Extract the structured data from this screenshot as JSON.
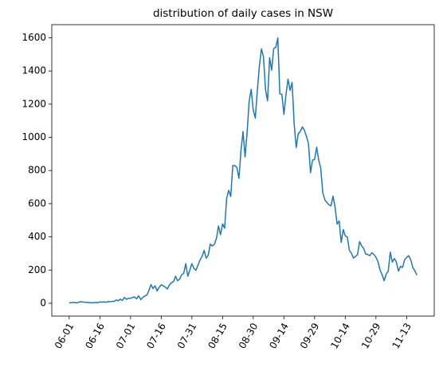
{
  "chart_data": {
    "type": "line",
    "title": "distribution of daily cases in NSW",
    "categories": [
      "06-01",
      null,
      null,
      null,
      null,
      null,
      null,
      null,
      null,
      null,
      null,
      null,
      null,
      null,
      null,
      "06-16",
      null,
      null,
      null,
      null,
      null,
      null,
      null,
      null,
      null,
      null,
      null,
      null,
      null,
      null,
      "07-01",
      null,
      null,
      null,
      null,
      null,
      null,
      null,
      null,
      null,
      null,
      null,
      null,
      null,
      null,
      "07-16",
      null,
      null,
      null,
      null,
      null,
      null,
      null,
      null,
      null,
      null,
      null,
      null,
      null,
      null,
      "07-31",
      null,
      null,
      null,
      null,
      null,
      null,
      null,
      null,
      null,
      null,
      null,
      null,
      null,
      null,
      "08-15",
      null,
      null,
      null,
      null,
      null,
      null,
      null,
      null,
      null,
      null,
      null,
      null,
      null,
      null,
      "08-30",
      null,
      null,
      null,
      null,
      null,
      null,
      null,
      null,
      null,
      null,
      null,
      null,
      null,
      null,
      "09-14",
      null,
      null,
      null,
      null,
      null,
      null,
      null,
      null,
      null,
      null,
      null,
      null,
      null,
      null,
      "09-29",
      null,
      null,
      null,
      null,
      null,
      null,
      null,
      null,
      null,
      null,
      null,
      null,
      null,
      null,
      "10-14",
      null,
      null,
      null,
      null,
      null,
      null,
      null,
      null,
      null,
      null,
      null,
      null,
      null,
      null,
      "10-29",
      null,
      null,
      null,
      null,
      null,
      null,
      null,
      null,
      null,
      null,
      null,
      null,
      null,
      null,
      "11-13",
      null,
      null,
      null,
      null,
      null
    ],
    "values": [
      3,
      4,
      5,
      4,
      3,
      8,
      9,
      7,
      6,
      5,
      4,
      3,
      4,
      5,
      4,
      8,
      7,
      8,
      6,
      10,
      9,
      12,
      11,
      20,
      15,
      25,
      17,
      35,
      24,
      30,
      30,
      35,
      38,
      27,
      45,
      22,
      35,
      44,
      50,
      78,
      112,
      89,
      105,
      74,
      97,
      111,
      105,
      98,
      86,
      110,
      124,
      130,
      163,
      136,
      145,
      172,
      180,
      239,
      163,
      200,
      239,
      210,
      199,
      230,
      262,
      283,
      319,
      272,
      290,
      357,
      345,
      356,
      390,
      466,
      413,
      478,
      452,
      633,
      681,
      644,
      830,
      830,
      818,
      753,
      920,
      1035,
      882,
      1029,
      1218,
      1290,
      1164,
      1116,
      1281,
      1431,
      1533,
      1485,
      1288,
      1220,
      1480,
      1405,
      1535,
      1542,
      1599,
      1262,
      1259,
      1138,
      1257,
      1351,
      1284,
      1331,
      1083,
      938,
      1022,
      1035,
      1063,
      1043,
      1007,
      961,
      787,
      863,
      867,
      941,
      864,
      813,
      667,
      623,
      608,
      594,
      587,
      646,
      580,
      477,
      496,
      367,
      444,
      406,
      399,
      319,
      301,
      273,
      282,
      294,
      372,
      345,
      331,
      296,
      294,
      287,
      304,
      294,
      277,
      250,
      200,
      173,
      136,
      176,
      193,
      308,
      248,
      270,
      247,
      194,
      222,
      216,
      262,
      276,
      287,
      262,
      216,
      196,
      170
    ],
    "color": "#1f77b4",
    "ylim": [
      -77,
      1679
    ],
    "yticks": [
      0,
      200,
      400,
      600,
      800,
      1000,
      1200,
      1400,
      1600
    ]
  }
}
